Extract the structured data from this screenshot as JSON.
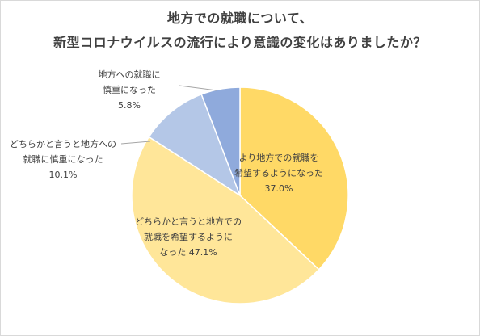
{
  "title_lines": [
    "地方での就職について、",
    "新型コロナウイルスの流行により意識の変化はありましたか？"
  ],
  "chart_data": {
    "type": "pie",
    "title": "地方での就職について、新型コロナウイルスの流行により意識の変化はありましたか？",
    "start": "12 o'clock, clockwise",
    "legend": "none (data labels)",
    "slices": [
      {
        "label_lines": [
          "より地方での就職を",
          "希望するようになった"
        ],
        "value_label": "37.0%",
        "value": 37.0,
        "color": "#ffd966"
      },
      {
        "label_lines": [
          "どちらかと言うと地方での",
          "就職を希望するように"
        ],
        "value_label": "なった 47.1%",
        "value": 47.1,
        "color": "#ffe699"
      },
      {
        "label_lines": [
          "どちらかと言うと地方への",
          "就職に慎重になった"
        ],
        "value_label": "10.1%",
        "value": 10.1,
        "color": "#b4c7e7"
      },
      {
        "label_lines": [
          "地方への就職に",
          "慎重になった"
        ],
        "value_label": "5.8%",
        "value": 5.8,
        "color": "#8faadc"
      }
    ]
  }
}
